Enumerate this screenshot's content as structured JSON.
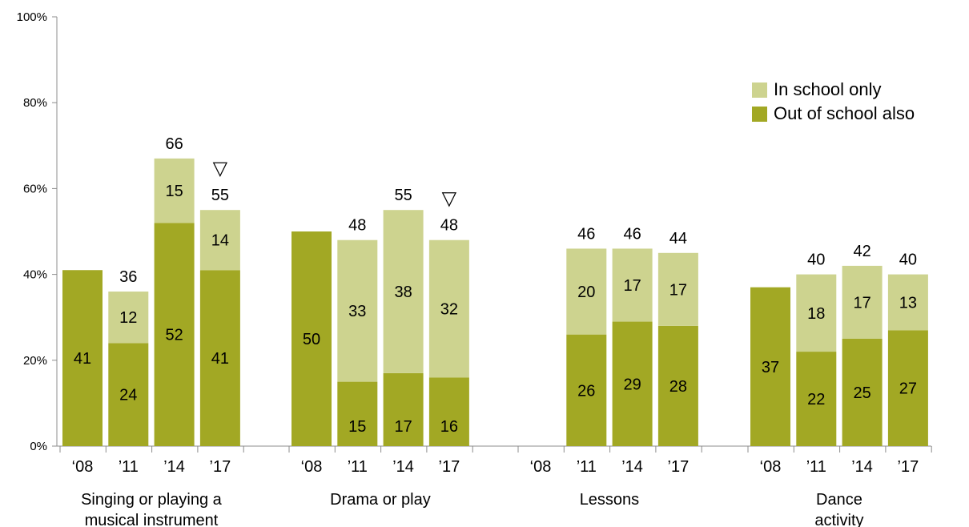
{
  "chart_data": {
    "type": "bar",
    "stacked": true,
    "ylim": [
      0,
      100
    ],
    "y_ticks": [
      "0%",
      "20%",
      "40%",
      "60%",
      "80%",
      "100%"
    ],
    "grid": false,
    "legend_position": "top-right",
    "colors": {
      "in_school_only": "#cdd38f",
      "out_of_school_also": "#a2a824"
    },
    "series_names": {
      "in_school_only": "In school only",
      "out_of_school_also": "Out of school also"
    },
    "groups": [
      {
        "label": "Singing or playing a musical instrument",
        "label_lines": [
          "Singing or playing a",
          "musical instrument"
        ],
        "marker": "▽",
        "bars": [
          {
            "year": "‘08",
            "out_of_school_also": 41,
            "in_school_only": null,
            "total": null,
            "out_label": "41",
            "in_label": "",
            "total_label": ""
          },
          {
            "year": "’11",
            "out_of_school_also": 24,
            "in_school_only": 12,
            "total": 36,
            "out_label": "24",
            "in_label": "12",
            "total_label": "36"
          },
          {
            "year": "’14",
            "out_of_school_also": 52,
            "in_school_only": 15,
            "total": 66,
            "out_label": "52",
            "in_label": "15",
            "total_label": "66"
          },
          {
            "year": "’17",
            "out_of_school_also": 41,
            "in_school_only": 14,
            "total": 55,
            "out_label": "41",
            "in_label": "14",
            "total_label": "55"
          }
        ]
      },
      {
        "label": "Drama or play",
        "label_lines": [
          "Drama or play"
        ],
        "marker": "▽",
        "bars": [
          {
            "year": "‘08",
            "out_of_school_also": 50,
            "in_school_only": null,
            "total": null,
            "out_label": "50",
            "in_label": "",
            "total_label": ""
          },
          {
            "year": "’11",
            "out_of_school_also": 15,
            "in_school_only": 33,
            "total": 48,
            "out_label": "15",
            "in_label": "33",
            "total_label": "48"
          },
          {
            "year": "’14",
            "out_of_school_also": 17,
            "in_school_only": 38,
            "total": 55,
            "out_label": "17",
            "in_label": "38",
            "total_label": "55"
          },
          {
            "year": "’17",
            "out_of_school_also": 16,
            "in_school_only": 32,
            "total": 48,
            "out_label": "16",
            "in_label": "32",
            "total_label": "48"
          }
        ]
      },
      {
        "label": "Lessons",
        "label_lines": [
          "Lessons"
        ],
        "marker": "",
        "bars": [
          {
            "year": "‘08",
            "out_of_school_also": null,
            "in_school_only": null,
            "total": null,
            "out_label": "",
            "in_label": "",
            "total_label": ""
          },
          {
            "year": "’11",
            "out_of_school_also": 26,
            "in_school_only": 20,
            "total": 46,
            "out_label": "26",
            "in_label": "20",
            "total_label": "46"
          },
          {
            "year": "’14",
            "out_of_school_also": 29,
            "in_school_only": 17,
            "total": 46,
            "out_label": "29",
            "in_label": "17",
            "total_label": "46"
          },
          {
            "year": "’17",
            "out_of_school_also": 28,
            "in_school_only": 17,
            "total": 44,
            "out_label": "28",
            "in_label": "17",
            "total_label": "44"
          }
        ]
      },
      {
        "label": "Dance activity",
        "label_lines": [
          "Dance",
          "activity"
        ],
        "marker": "",
        "bars": [
          {
            "year": "‘08",
            "out_of_school_also": 37,
            "in_school_only": null,
            "total": null,
            "out_label": "37",
            "in_label": "",
            "total_label": ""
          },
          {
            "year": "’11",
            "out_of_school_also": 22,
            "in_school_only": 18,
            "total": 40,
            "out_label": "22",
            "in_label": "18",
            "total_label": "40"
          },
          {
            "year": "’14",
            "out_of_school_also": 25,
            "in_school_only": 17,
            "total": 42,
            "out_label": "25",
            "in_label": "17",
            "total_label": "42"
          },
          {
            "year": "’17",
            "out_of_school_also": 27,
            "in_school_only": 13,
            "total": 40,
            "out_label": "27",
            "in_label": "13",
            "total_label": "40"
          }
        ]
      }
    ]
  }
}
